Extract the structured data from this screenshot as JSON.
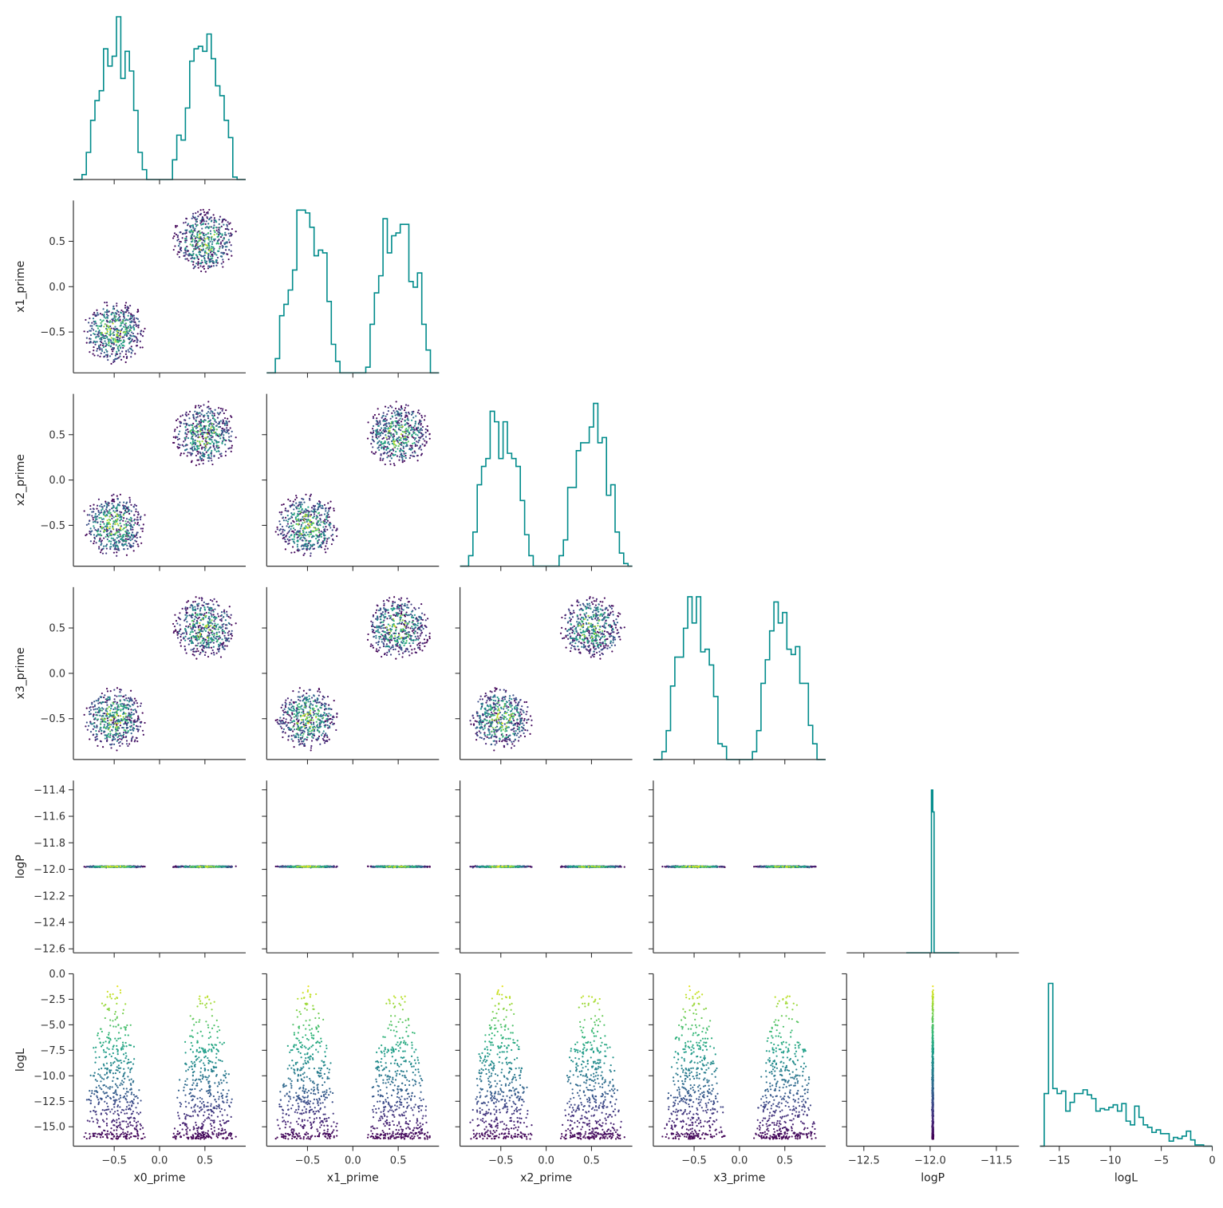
{
  "chart_data": {
    "type": "scatter",
    "kind": "corner / pair plot",
    "variables": [
      "x0_prime",
      "x1_prime",
      "x2_prime",
      "x3_prime",
      "logP",
      "logL"
    ],
    "axis_labels": [
      "x0_prime",
      "x1_prime",
      "x2_prime",
      "x3_prime",
      "logP",
      "logL"
    ],
    "ranges": {
      "x0_prime": [
        -0.95,
        0.95
      ],
      "x1_prime": [
        -0.95,
        0.95
      ],
      "x2_prime": [
        -0.95,
        0.95
      ],
      "x3_prime": [
        -0.95,
        0.95
      ],
      "logP": [
        -12.63,
        -11.33
      ],
      "logL": [
        -16.9,
        0
      ]
    },
    "ticks": {
      "x0_prime": {
        "values": [
          -0.5,
          0.0,
          0.5
        ],
        "labels": [
          "−0.5",
          "0.0",
          "0.5"
        ]
      },
      "x1_prime": {
        "values": [
          -0.5,
          0.0,
          0.5
        ],
        "labels": [
          "−0.5",
          "0.0",
          "0.5"
        ]
      },
      "x2_prime": {
        "values": [
          -0.5,
          0.0,
          0.5
        ],
        "labels": [
          "−0.5",
          "0.0",
          "0.5"
        ]
      },
      "x3_prime": {
        "values": [
          -0.5,
          0.0,
          0.5
        ],
        "labels": [
          "−0.5",
          "0.0",
          "0.5"
        ]
      },
      "logP_y": {
        "values": [
          -11.4,
          -11.6,
          -11.8,
          -12.0,
          -12.2,
          -12.4,
          -12.6
        ],
        "labels": [
          "−11.4",
          "−11.6",
          "−11.8",
          "−12.0",
          "−12.2",
          "−12.4",
          "−12.6"
        ]
      },
      "logP_x": {
        "values": [
          -12.5,
          -12.0,
          -11.5
        ],
        "labels": [
          "−12.5",
          "−12.0",
          "−11.5"
        ]
      },
      "logL_y": {
        "values": [
          0,
          -2.5,
          -5,
          -7.5,
          -10,
          -12.5,
          -15
        ],
        "labels": [
          "0.0",
          "−2.5",
          "−5.0",
          "−7.5",
          "−10.0",
          "−12.5",
          "−15.0"
        ]
      },
      "logL_x": {
        "values": [
          -15,
          -10,
          -5,
          0
        ],
        "labels": [
          "−15",
          "−10",
          "−5",
          "0"
        ]
      }
    },
    "logP_value": -11.98,
    "clusters": [
      {
        "center": [
          -0.5,
          -0.5,
          -0.5,
          -0.5
        ],
        "radius": 0.37,
        "count": 500
      },
      {
        "center": [
          0.5,
          0.5,
          0.5,
          0.5
        ],
        "radius": 0.37,
        "count": 500
      }
    ],
    "logL_range_observed": [
      -16.2,
      -0.7
    ],
    "color_by": "logL",
    "colormap": "viridis",
    "histogram_color": "#008b8b",
    "grid": false,
    "legend": "none",
    "diagonal": "step histogram",
    "lower_triangle": "scatter",
    "upper_triangle": "empty"
  }
}
